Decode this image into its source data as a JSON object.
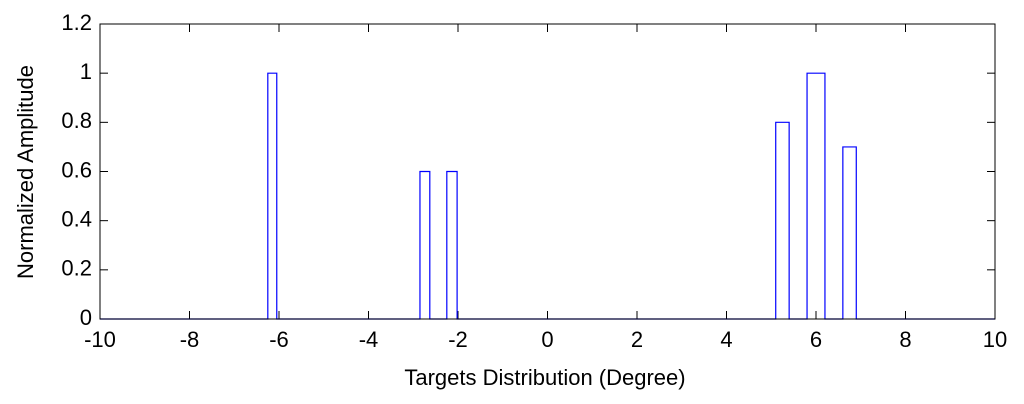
{
  "chart_data": {
    "type": "line",
    "x_label": "Targets Distribution (Degree)",
    "y_label": "Normalized Amplitude",
    "xlim": [
      -10,
      10
    ],
    "ylim": [
      0,
      1.2
    ],
    "xticks": [
      -10,
      -8,
      -6,
      -4,
      -2,
      0,
      2,
      4,
      6,
      8,
      10
    ],
    "yticks": [
      0,
      0.2,
      0.4,
      0.6,
      0.8,
      1,
      1.2
    ],
    "grid": false,
    "series": [
      {
        "color": "#0000ff",
        "x": [
          -10,
          -6.25,
          -6.25,
          -6.05,
          -6.05,
          -2.85,
          -2.85,
          -2.63,
          -2.63,
          -2.25,
          -2.25,
          -2.02,
          -2.02,
          5.1,
          5.1,
          5.4,
          5.4,
          5.8,
          5.8,
          6.2,
          6.2,
          6.6,
          6.6,
          6.9,
          6.9,
          10
        ],
        "values": [
          0,
          0,
          1,
          1,
          0,
          0,
          0.6,
          0.6,
          0,
          0,
          0.6,
          0.6,
          0,
          0,
          0.8,
          0.8,
          0,
          0,
          1,
          1,
          0,
          0,
          0.7,
          0.7,
          0,
          0
        ]
      }
    ]
  }
}
